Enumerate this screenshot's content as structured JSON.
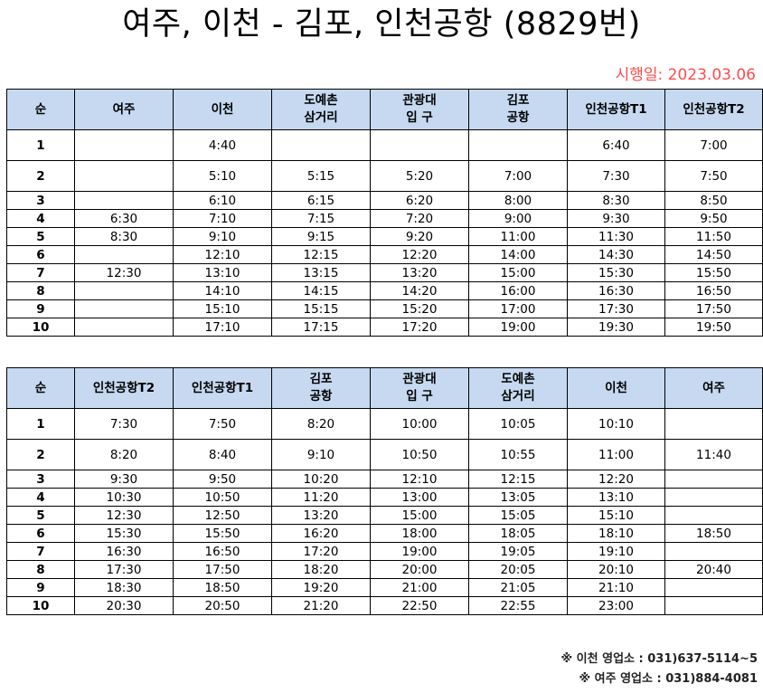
{
  "title": "여주, 이천 - 김포, 인천공항 (8829번)",
  "effective_date": "시행일: 2023.03.06",
  "outbound": {
    "headers": [
      [
        "순"
      ],
      [
        "여주"
      ],
      [
        "이천"
      ],
      [
        "도예촌",
        "삼거리"
      ],
      [
        "관광대",
        "입 구"
      ],
      [
        "김포",
        "공항"
      ],
      [
        "인천공항T1"
      ],
      [
        "인천공항T2"
      ]
    ],
    "rows": [
      [
        "1",
        "",
        "4:40",
        "",
        "",
        "",
        "6:40",
        "7:00"
      ],
      [
        "2",
        "",
        "5:10",
        "5:15",
        "5:20",
        "7:00",
        "7:30",
        "7:50"
      ],
      [
        "3",
        "",
        "6:10",
        "6:15",
        "6:20",
        "8:00",
        "8:30",
        "8:50"
      ],
      [
        "4",
        "6:30",
        "7:10",
        "7:15",
        "7:20",
        "9:00",
        "9:30",
        "9:50"
      ],
      [
        "5",
        "8:30",
        "9:10",
        "9:15",
        "9:20",
        "11:00",
        "11:30",
        "11:50"
      ],
      [
        "6",
        "",
        "12:10",
        "12:15",
        "12:20",
        "14:00",
        "14:30",
        "14:50"
      ],
      [
        "7",
        "12:30",
        "13:10",
        "13:15",
        "13:20",
        "15:00",
        "15:30",
        "15:50"
      ],
      [
        "8",
        "",
        "14:10",
        "14:15",
        "14:20",
        "16:00",
        "16:30",
        "16:50"
      ],
      [
        "9",
        "",
        "15:10",
        "15:15",
        "15:20",
        "17:00",
        "17:30",
        "17:50"
      ],
      [
        "10",
        "",
        "17:10",
        "17:15",
        "17:20",
        "19:00",
        "19:30",
        "19:50"
      ]
    ]
  },
  "inbound": {
    "headers": [
      [
        "순"
      ],
      [
        "인천공항T2"
      ],
      [
        "인천공항T1"
      ],
      [
        "김포",
        "공항"
      ],
      [
        "관광대",
        "입 구"
      ],
      [
        "도예촌",
        "삼거리"
      ],
      [
        "이천"
      ],
      [
        "여주"
      ]
    ],
    "rows": [
      [
        "1",
        "7:30",
        "7:50",
        "8:20",
        "10:00",
        "10:05",
        "10:10",
        ""
      ],
      [
        "2",
        "8:20",
        "8:40",
        "9:10",
        "10:50",
        "10:55",
        "11:00",
        "11:40"
      ],
      [
        "3",
        "9:30",
        "9:50",
        "10:20",
        "12:10",
        "12:15",
        "12:20",
        ""
      ],
      [
        "4",
        "10:30",
        "10:50",
        "11:20",
        "13:00",
        "13:05",
        "13:10",
        ""
      ],
      [
        "5",
        "12:30",
        "12:50",
        "13:20",
        "15:00",
        "15:05",
        "15:10",
        ""
      ],
      [
        "6",
        "15:30",
        "15:50",
        "16:20",
        "18:00",
        "18:05",
        "18:10",
        "18:50"
      ],
      [
        "7",
        "16:30",
        "16:50",
        "17:20",
        "19:00",
        "19:05",
        "19:10",
        ""
      ],
      [
        "8",
        "17:30",
        "17:50",
        "18:20",
        "20:00",
        "20:05",
        "20:10",
        "20:40"
      ],
      [
        "9",
        "18:30",
        "18:50",
        "19:20",
        "21:00",
        "21:05",
        "21:10",
        ""
      ],
      [
        "10",
        "20:30",
        "20:50",
        "21:20",
        "22:50",
        "22:55",
        "23:00",
        ""
      ]
    ]
  },
  "contacts": [
    "※ 이천 영업소 : 031)637-5114~5",
    "※ 여주 영업소 : 031)884-4081"
  ]
}
